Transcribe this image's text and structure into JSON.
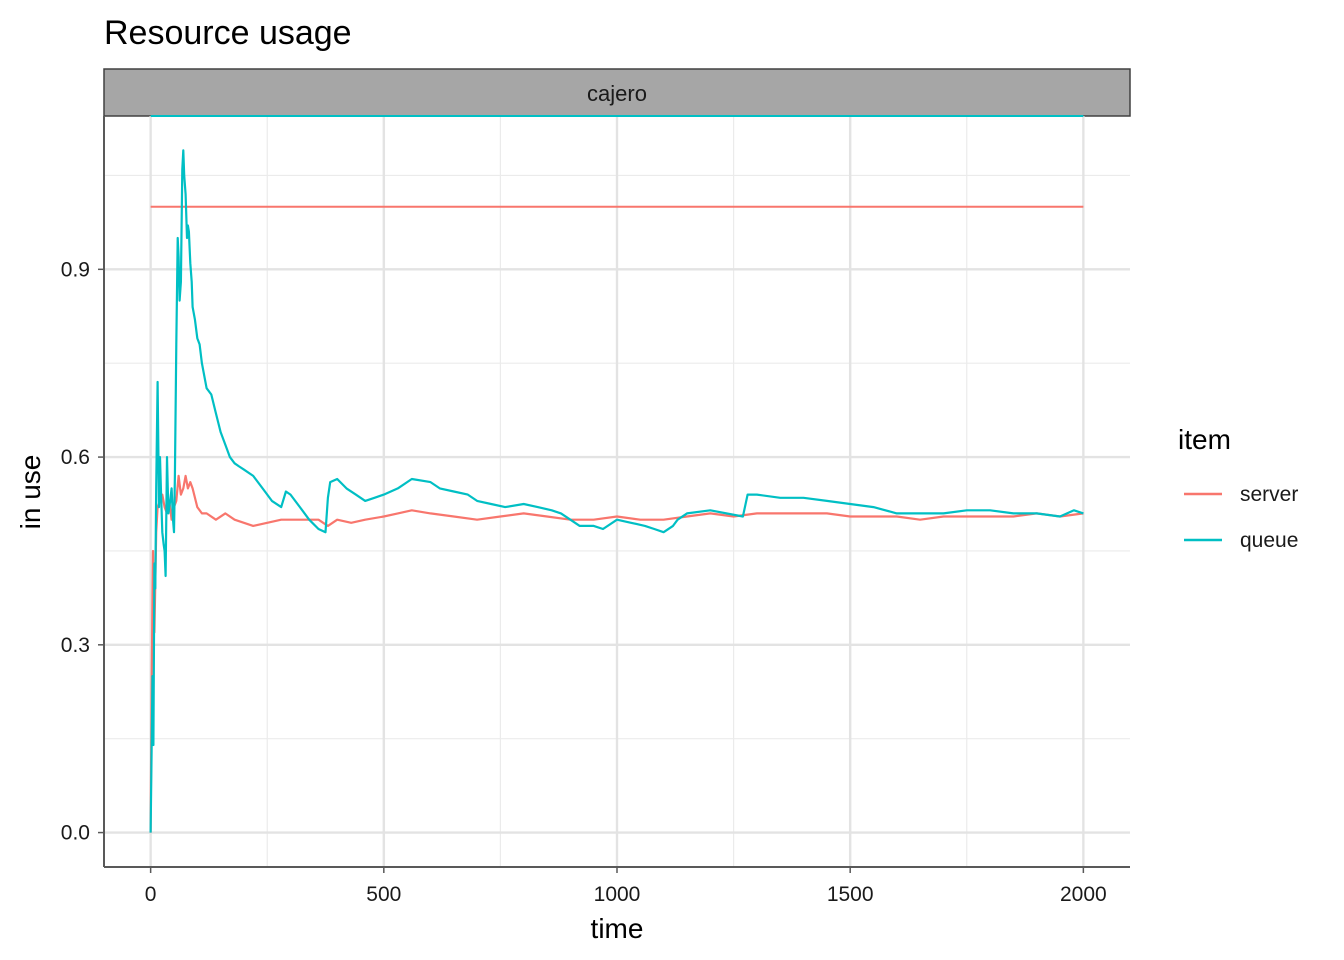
{
  "chart_data": {
    "type": "line",
    "title": "Resource usage",
    "facet": "cajero",
    "xlabel": "time",
    "ylabel": "in use",
    "xlim": [
      -100,
      2100
    ],
    "ylim": [
      -0.055,
      1.145
    ],
    "x_ticks": [
      0,
      500,
      1000,
      1500,
      2000
    ],
    "x_tick_labels": [
      "0",
      "500",
      "1000",
      "1500",
      "2000"
    ],
    "y_ticks": [
      0.0,
      0.3,
      0.6,
      0.9
    ],
    "y_tick_labels": [
      "0.0",
      "0.3",
      "0.6",
      "0.9"
    ],
    "legend": {
      "title": "item",
      "position": "right",
      "entries": [
        {
          "label": "server",
          "color": "#F8766D"
        },
        {
          "label": "queue",
          "color": "#00BFC4"
        }
      ]
    },
    "capacity_lines": [
      {
        "series": "server",
        "y": 1.0,
        "x": [
          0,
          2000
        ],
        "color": "#F8766D"
      },
      {
        "series": "queue",
        "y": 1.145,
        "x": [
          0,
          2000
        ],
        "color": "#00BFC4"
      }
    ],
    "series": [
      {
        "name": "server",
        "color": "#F8766D",
        "x": [
          0,
          2,
          5,
          8,
          12,
          15,
          20,
          25,
          30,
          35,
          40,
          45,
          50,
          55,
          60,
          65,
          70,
          75,
          80,
          85,
          90,
          100,
          110,
          120,
          140,
          160,
          180,
          200,
          220,
          250,
          280,
          300,
          330,
          360,
          380,
          400,
          430,
          460,
          500,
          530,
          560,
          600,
          650,
          700,
          750,
          800,
          850,
          900,
          950,
          1000,
          1050,
          1100,
          1150,
          1200,
          1250,
          1300,
          1350,
          1400,
          1450,
          1500,
          1550,
          1600,
          1650,
          1700,
          1750,
          1800,
          1850,
          1900,
          1950,
          2000
        ],
        "values": [
          0.0,
          0.23,
          0.45,
          0.32,
          0.48,
          0.52,
          0.53,
          0.54,
          0.52,
          0.51,
          0.53,
          0.5,
          0.52,
          0.53,
          0.57,
          0.54,
          0.55,
          0.57,
          0.55,
          0.56,
          0.55,
          0.52,
          0.51,
          0.51,
          0.5,
          0.51,
          0.5,
          0.495,
          0.49,
          0.495,
          0.5,
          0.5,
          0.5,
          0.5,
          0.49,
          0.5,
          0.495,
          0.5,
          0.505,
          0.51,
          0.515,
          0.51,
          0.505,
          0.5,
          0.505,
          0.51,
          0.505,
          0.5,
          0.5,
          0.505,
          0.5,
          0.5,
          0.505,
          0.51,
          0.505,
          0.51,
          0.51,
          0.51,
          0.51,
          0.505,
          0.505,
          0.505,
          0.5,
          0.505,
          0.505,
          0.505,
          0.505,
          0.51,
          0.505,
          0.51
        ]
      },
      {
        "name": "queue",
        "color": "#00BFC4",
        "x": [
          0,
          2,
          4,
          6,
          8,
          10,
          12,
          15,
          18,
          20,
          22,
          25,
          28,
          30,
          32,
          35,
          38,
          40,
          42,
          45,
          48,
          50,
          52,
          55,
          58,
          60,
          62,
          65,
          68,
          70,
          72,
          75,
          78,
          80,
          82,
          85,
          88,
          90,
          95,
          100,
          105,
          110,
          120,
          130,
          140,
          150,
          160,
          170,
          180,
          190,
          200,
          220,
          240,
          260,
          280,
          290,
          300,
          320,
          340,
          360,
          375,
          380,
          385,
          400,
          420,
          440,
          460,
          480,
          500,
          530,
          560,
          600,
          620,
          650,
          680,
          700,
          730,
          760,
          800,
          830,
          860,
          880,
          900,
          920,
          950,
          970,
          1000,
          1030,
          1060,
          1080,
          1100,
          1120,
          1130,
          1150,
          1200,
          1270,
          1280,
          1300,
          1350,
          1400,
          1450,
          1500,
          1550,
          1600,
          1650,
          1700,
          1750,
          1800,
          1850,
          1900,
          1950,
          1980,
          2000
        ],
        "values": [
          0.0,
          0.13,
          0.25,
          0.14,
          0.43,
          0.39,
          0.55,
          0.72,
          0.52,
          0.6,
          0.55,
          0.48,
          0.46,
          0.45,
          0.41,
          0.6,
          0.51,
          0.52,
          0.53,
          0.55,
          0.5,
          0.48,
          0.57,
          0.78,
          0.95,
          0.92,
          0.85,
          0.88,
          1.06,
          1.09,
          1.05,
          1.02,
          0.95,
          0.97,
          0.96,
          0.91,
          0.88,
          0.84,
          0.82,
          0.79,
          0.78,
          0.75,
          0.71,
          0.7,
          0.67,
          0.64,
          0.62,
          0.6,
          0.59,
          0.585,
          0.58,
          0.57,
          0.55,
          0.53,
          0.52,
          0.545,
          0.54,
          0.52,
          0.5,
          0.485,
          0.48,
          0.535,
          0.56,
          0.565,
          0.55,
          0.54,
          0.53,
          0.535,
          0.54,
          0.55,
          0.565,
          0.56,
          0.55,
          0.545,
          0.54,
          0.53,
          0.525,
          0.52,
          0.525,
          0.52,
          0.515,
          0.51,
          0.5,
          0.49,
          0.49,
          0.485,
          0.5,
          0.495,
          0.49,
          0.485,
          0.48,
          0.49,
          0.5,
          0.51,
          0.515,
          0.505,
          0.54,
          0.54,
          0.535,
          0.535,
          0.53,
          0.525,
          0.52,
          0.51,
          0.51,
          0.51,
          0.515,
          0.515,
          0.51,
          0.51,
          0.505,
          0.515,
          0.51
        ]
      }
    ]
  }
}
